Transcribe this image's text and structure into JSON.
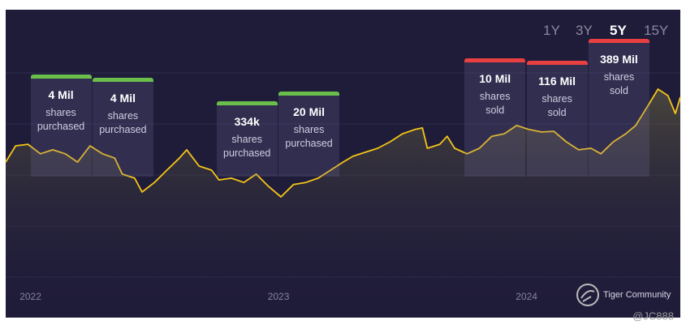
{
  "chart_data": {
    "type": "line",
    "x": [
      2021.9,
      2021.94,
      2021.99,
      2022.04,
      2022.09,
      2022.14,
      2022.19,
      2022.24,
      2022.29,
      2022.34,
      2022.37,
      2022.42,
      2022.45,
      2022.5,
      2022.55,
      2022.6,
      2022.63,
      2022.68,
      2022.73,
      2022.76,
      2022.81,
      2022.86,
      2022.91,
      2022.96,
      2023.01,
      2023.06,
      2023.11,
      2023.16,
      2023.21,
      2023.26,
      2023.3,
      2023.35,
      2023.4,
      2023.45,
      2023.5,
      2023.55,
      2023.58,
      2023.6,
      2023.65,
      2023.68,
      2023.71,
      2023.76,
      2023.81,
      2023.86,
      2023.91,
      2023.96,
      2024.01,
      2024.06,
      2024.11,
      2024.16,
      2024.21,
      2024.26,
      2024.3,
      2024.35,
      2024.4,
      2024.44,
      2024.49,
      2024.53,
      2024.57,
      2024.6,
      2024.62
    ],
    "values": [
      50.5,
      55.8,
      56.3,
      53.2,
      54.5,
      53.2,
      50.5,
      55.8,
      53.2,
      51.8,
      46.6,
      45.3,
      40.8,
      43.9,
      47.9,
      51.8,
      54.5,
      49.2,
      47.9,
      44.7,
      45.3,
      43.9,
      46.6,
      42.6,
      39.2,
      43.2,
      43.9,
      45.3,
      47.9,
      50.5,
      52.4,
      53.7,
      55.0,
      57.1,
      59.7,
      61.1,
      61.6,
      55.0,
      56.3,
      58.9,
      55.0,
      53.2,
      55.0,
      58.9,
      59.7,
      62.4,
      61.1,
      60.3,
      60.5,
      57.1,
      54.5,
      55.0,
      53.2,
      57.1,
      59.7,
      62.4,
      68.9,
      74.2,
      72.1,
      66.3,
      71.6
    ],
    "color": "#f5c518",
    "xlim": [
      2021.9,
      2024.62
    ],
    "ylim": [
      0,
      100
    ],
    "xticks": [
      2022,
      2023,
      2024
    ],
    "annotations": [
      {
        "x": 2022.0,
        "amount": "4 Mil",
        "text": "shares purchased",
        "color": "#6abf4b"
      },
      {
        "x": 2022.25,
        "amount": "4 Mil",
        "text": "shares purchased",
        "color": "#6abf4b"
      },
      {
        "x": 2022.75,
        "amount": "334k",
        "text": "shares purchased",
        "color": "#6abf4b"
      },
      {
        "x": 2023.0,
        "amount": "20 Mil",
        "text": "shares purchased",
        "color": "#6abf4b"
      },
      {
        "x": 2023.75,
        "amount": "10 Mil",
        "text": "shares sold",
        "color": "#e84040"
      },
      {
        "x": 2024.0,
        "amount": "116 Mil",
        "text": "shares sold",
        "color": "#e84040"
      },
      {
        "x": 2024.25,
        "amount": "389 Mil",
        "text": "shares sold",
        "color": "#e84040"
      }
    ],
    "range_buttons": [
      "1Y",
      "3Y",
      "5Y",
      "15Y"
    ],
    "active_range": 2,
    "brand": "Tiger Community",
    "watermark": "@JC888"
  }
}
